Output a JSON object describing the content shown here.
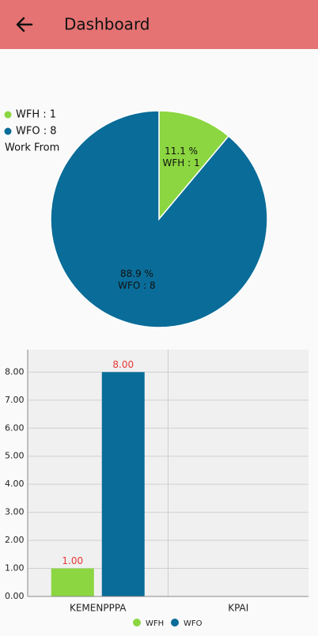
{
  "header": {
    "title": "Dashboard"
  },
  "chart_data": [
    {
      "type": "pie",
      "categories": [
        "WFH : 1",
        "WFO : 8"
      ],
      "values": [
        11.1,
        88.9
      ],
      "value_labels": [
        "11.1 %",
        "88.9 %"
      ],
      "colors": [
        "#8bd641",
        "#0a6c98"
      ],
      "legend_title": "Work From",
      "legend": "top-left"
    },
    {
      "type": "bar",
      "categories": [
        "KEMENPPPA",
        "KPAI"
      ],
      "series": [
        {
          "name": "WFH",
          "color": "#8bd641",
          "values": [
            1,
            null
          ],
          "value_labels": [
            "1.00",
            null
          ]
        },
        {
          "name": "WFO",
          "color": "#0a6c98",
          "values": [
            8,
            null
          ],
          "value_labels": [
            "8.00",
            null
          ]
        }
      ],
      "ylim": [
        0,
        8.8
      ],
      "yticks": [
        {
          "value": 0,
          "label": "0.00"
        },
        {
          "value": 1,
          "label": "1.00"
        },
        {
          "value": 2,
          "label": "2.00"
        },
        {
          "value": 3,
          "label": "3.00"
        },
        {
          "value": 4,
          "label": "4.00"
        },
        {
          "value": 5,
          "label": "5.00"
        },
        {
          "value": 6,
          "label": "6.00"
        },
        {
          "value": 7,
          "label": "7.00"
        },
        {
          "value": 8,
          "label": "8.00"
        }
      ],
      "grid": true,
      "legend": "bottom"
    }
  ]
}
